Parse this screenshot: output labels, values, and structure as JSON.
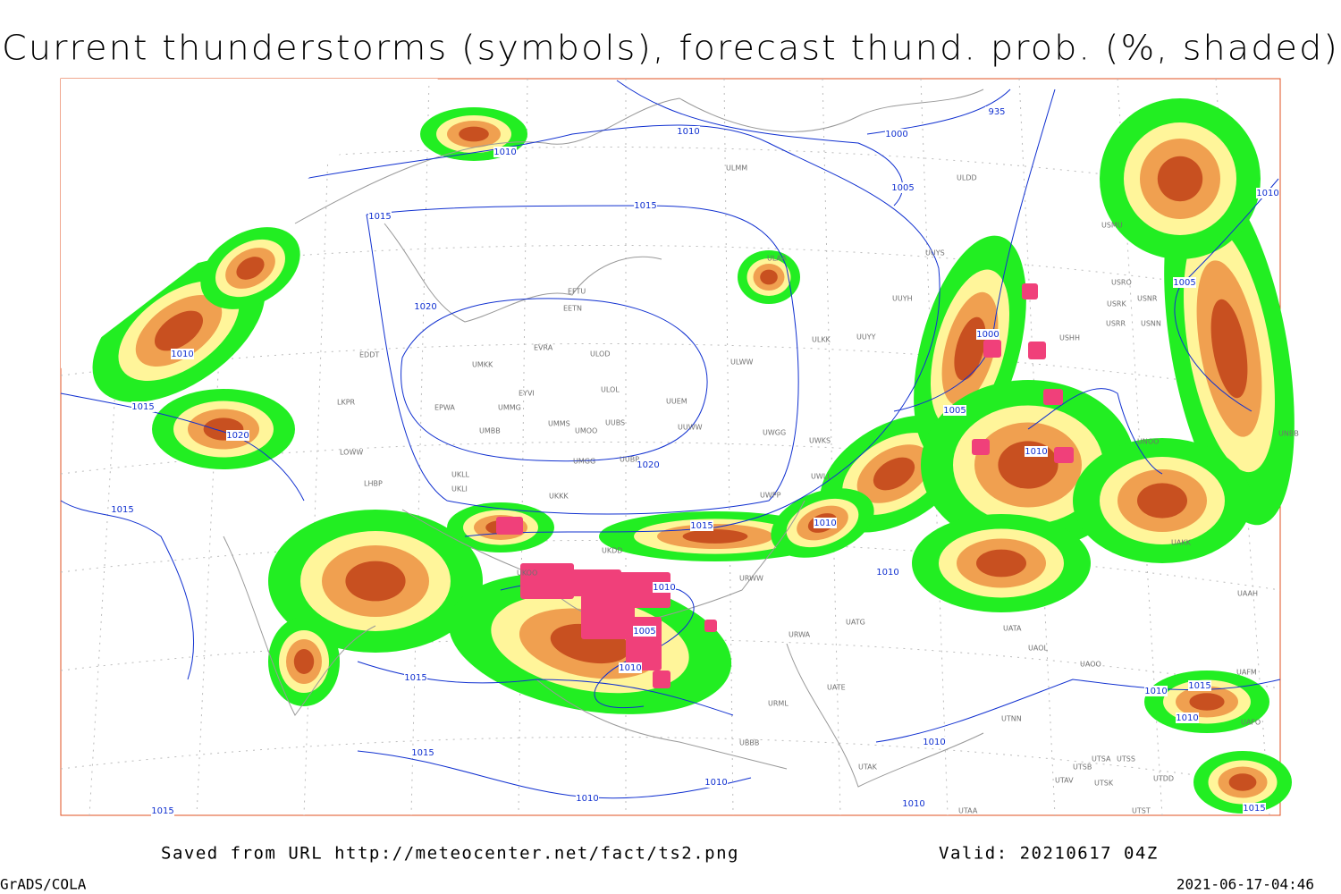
{
  "header": {
    "title": "Current thunderstorms (symbols), forecast thund. prob. (%, shaded)"
  },
  "isobar_labels": [
    "935",
    "1000",
    "1010",
    "1010",
    "1005",
    "1015",
    "1015",
    "1020",
    "1010",
    "1015",
    "1020",
    "1015",
    "1020",
    "1015",
    "1010",
    "1010",
    "1005",
    "1000",
    "1010",
    "1005",
    "1010",
    "1010",
    "1005",
    "1010",
    "1015",
    "1015",
    "1010",
    "1010",
    "1015",
    "1010",
    "1010",
    "1010",
    "1015",
    "1010",
    "1015"
  ],
  "station_labels": [
    "ULDD",
    "ULMM",
    "USMU",
    "UUYS",
    "ULAA",
    "EFTU",
    "EETN",
    "USRO",
    "USRK",
    "USNR",
    "USRR",
    "USNN",
    "UUYH",
    "USHH",
    "ULKK",
    "UUYY",
    "EVRA",
    "ULOD",
    "EDDT",
    "UMKK",
    "ULWW",
    "ULOL",
    "EYVI",
    "UUEM",
    "LKPR",
    "EPWA",
    "UMMG",
    "UMMS",
    "UUBS",
    "UMOO",
    "UUWW",
    "UWGG",
    "UMBB",
    "UWKS",
    "UNOO",
    "UNBB",
    "LOWW",
    "UMGG",
    "UUBP",
    "UKLL",
    "UWLL",
    "LHBP",
    "UKLI",
    "UKKK",
    "UWPP",
    "UKDD",
    "UKOO",
    "URWW",
    "URWA",
    "UATG",
    "UATA",
    "UAOL",
    "UAOO",
    "UAAH",
    "UAKK",
    "UATE",
    "URML",
    "UTNN",
    "UBBB",
    "UTAK",
    "UTSA",
    "UTSB",
    "UTSS",
    "UTAV",
    "UTSK",
    "UTDD",
    "UTAA",
    "UTST",
    "UAFO",
    "UAFM"
  ],
  "footer": {
    "source": "Saved from URL http://meteocenter.net/fact/ts2.png",
    "valid": "Valid: 20210617 04Z",
    "software": "GrADS/COLA",
    "timestamp": "2021-06-17-04:46"
  }
}
